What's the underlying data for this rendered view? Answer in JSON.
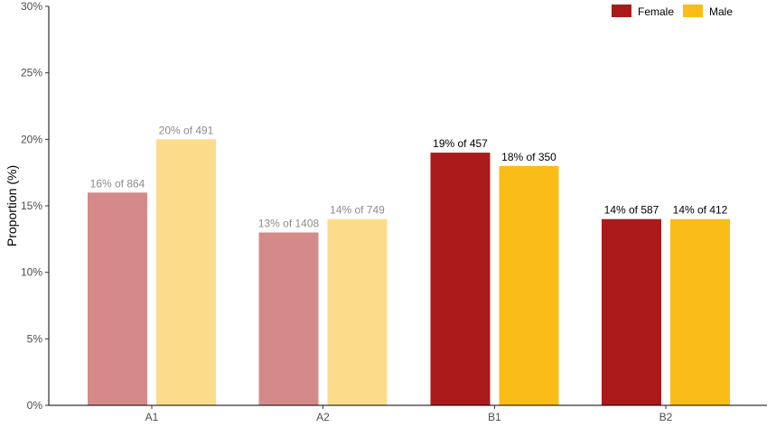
{
  "chart_data": {
    "type": "bar",
    "title": "",
    "xlabel": "",
    "ylabel": "Proportion (%)",
    "ylim": [
      0,
      30
    ],
    "y_ticks": [
      "0%",
      "5%",
      "10%",
      "15%",
      "20%",
      "25%",
      "30%"
    ],
    "y_tick_values": [
      0,
      5,
      10,
      15,
      20,
      25,
      30
    ],
    "categories": [
      "A1",
      "A2",
      "B1",
      "B2"
    ],
    "legend_position": "top-right",
    "series": [
      {
        "name": "Female",
        "legend_color": "#ab1a1a",
        "colors": [
          "#d58a8a",
          "#d58a8a",
          "#ab1a1a",
          "#ab1a1a"
        ],
        "values": [
          16,
          13,
          19,
          14
        ],
        "labels": [
          "16% of 864",
          "13% of 1408",
          "19% of 457",
          "14% of 587"
        ]
      },
      {
        "name": "Male",
        "legend_color": "#fabd18",
        "colors": [
          "#fbdc8a",
          "#fbdc8a",
          "#fabd18",
          "#fabd18"
        ],
        "values": [
          20,
          14,
          18,
          14
        ],
        "labels": [
          "20% of 491",
          "14% of 749",
          "18% of 350",
          "14% of 412"
        ]
      }
    ],
    "label_colors": [
      "#8c8c8c",
      "#8c8c8c",
      "#000000",
      "#000000"
    ],
    "grid": false
  }
}
